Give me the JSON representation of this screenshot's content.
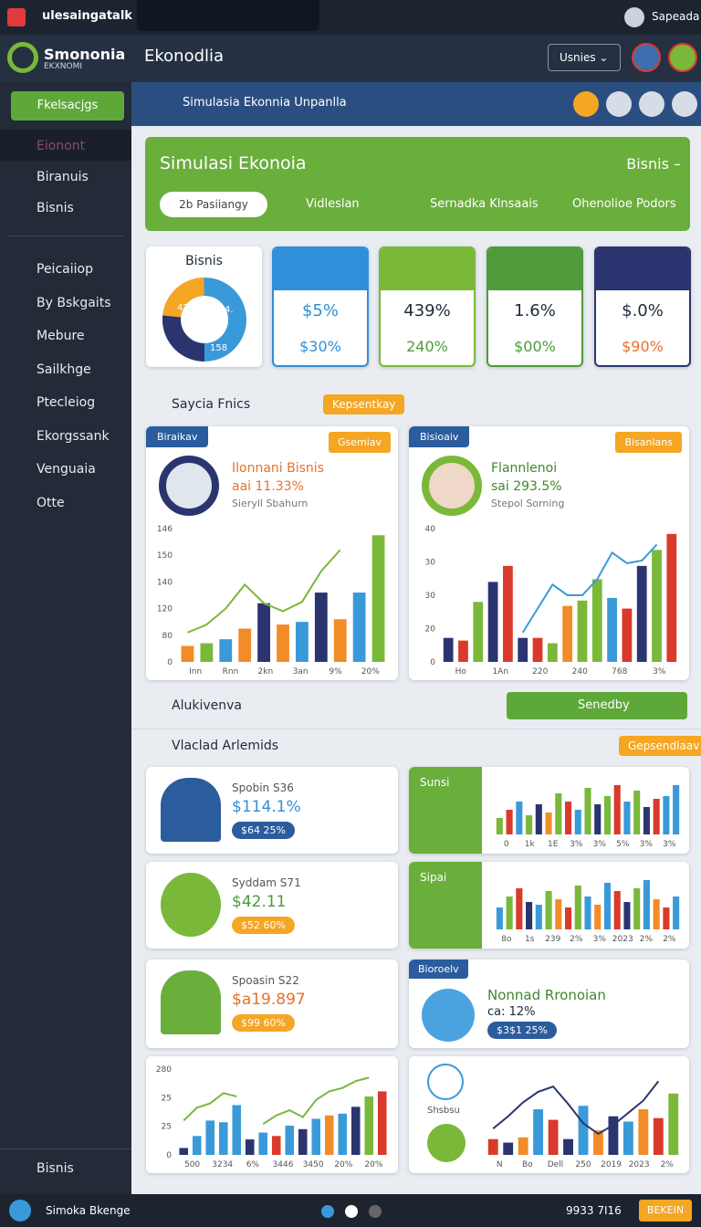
{
  "top_bar": {
    "app": "ulesaingatalk",
    "user": "Sapeada"
  },
  "header": {
    "brand": "Smononia",
    "brand_sub": "EKXNOMI",
    "title": "Ekonodlia",
    "dropdown": "Usnies"
  },
  "sidebar": {
    "button": "Fkelsacjgs",
    "items_top": [
      "Eionont",
      "Biranuis",
      "Bisnis"
    ],
    "items": [
      "Peicaiiop",
      "By Bskgaits",
      "Mebure",
      "Sailkhge",
      "Ptecleiog",
      "Ekorgssank",
      "Venguaia",
      "Otte"
    ],
    "footer": "Bisnis"
  },
  "breadcrumb": "Simulasia Ekonnia Unpanlla",
  "banner": {
    "title": "Simulasi Ekonoia",
    "right": "Bisnis –",
    "pill": "2b Pasiiangy",
    "items": [
      "Vidleslan",
      "Sernadka Klnsaais",
      "Ohenolioe Podors"
    ]
  },
  "kpis": {
    "donut_card": {
      "title": "Bisnis",
      "labels": [
        "47",
        "4.",
        "158"
      ]
    },
    "cards": [
      {
        "top": "$5%",
        "bottom": "$30%",
        "color": "#2f8fd8"
      },
      {
        "top": "439%",
        "bottom": "240%",
        "color": "#7ab83a"
      },
      {
        "top": "1.6%",
        "bottom": "$00%",
        "color": "#4f9a3a"
      },
      {
        "top": "$.0%",
        "bottom": "$90%",
        "color": "#2a3570"
      }
    ]
  },
  "section1": {
    "title": "Saycia Fnics",
    "button": "Kepsentkay"
  },
  "panels": [
    {
      "tag": "Biraikav",
      "badge": "Gsemiav",
      "title": "Ilonnani Bisnis",
      "value": "aai 11.33%",
      "sub": "Sieryll Sbahurn",
      "chart": {
        "y_labels": [
          "0",
          "80",
          "120",
          "140",
          "150",
          "146"
        ],
        "x_labels": [
          "Inn",
          "Rnn",
          "2kn",
          "3an",
          "9%",
          "20%"
        ],
        "ylim": [
          0,
          100
        ],
        "bars": [
          12,
          14,
          17,
          25,
          44,
          28,
          30,
          52,
          32,
          52,
          95
        ],
        "bar_colors": [
          "#f28c28",
          "#7ab83a",
          "#3a9ad9",
          "#f28c28",
          "#2a3570",
          "#f28c28",
          "#3a9ad9",
          "#2a3570",
          "#f28c28",
          "#3a9ad9",
          "#7ab83a"
        ],
        "line": [
          22,
          28,
          40,
          58,
          44,
          38,
          45,
          68,
          84,
          null,
          null
        ],
        "line_color": "#7ab83a"
      }
    },
    {
      "tag": "Bisioaiv",
      "badge": "Bisanlans",
      "title": "Flannlenoi",
      "value": "sai 293.5%",
      "sub": "Stepol Sorning",
      "chart": {
        "y_labels": [
          "0",
          "20",
          "30",
          "30",
          "40"
        ],
        "x_labels": [
          "Ho",
          "1An",
          "220",
          "240",
          "768",
          "3%"
        ],
        "ylim": [
          0,
          100
        ],
        "bars": [
          18,
          16,
          45,
          60,
          72,
          18,
          18,
          14,
          42,
          46,
          62,
          48,
          40,
          72,
          84,
          96
        ],
        "bar_colors": [
          "#2a3570",
          "#d93a2b",
          "#7ab83a",
          "#2a3570",
          "#d93a2b",
          "#2a3570",
          "#d93a2b",
          "#7ab83a",
          "#f28c28",
          "#7ab83a",
          "#7ab83a",
          "#3a9ad9",
          "#d93a2b",
          "#2a3570",
          "#7ab83a",
          "#d93a2b"
        ],
        "line": [
          null,
          null,
          null,
          null,
          null,
          22,
          40,
          58,
          50,
          50,
          62,
          82,
          74,
          76,
          88,
          null
        ],
        "line_color": "#3a9ad9"
      }
    }
  ],
  "section2": {
    "title": "Alukivenva",
    "dropdown": "Senedby"
  },
  "section3": {
    "title": "Vlaclad Arlemids",
    "button": "Gepsendlaav"
  },
  "people": [
    {
      "name": "Spobin S36",
      "value": "$114.1%",
      "pill": "$64 25%"
    },
    {
      "name": "Syddam S71",
      "value": "$42.11",
      "pill": "$52 60%"
    },
    {
      "name": "Spoasin S22",
      "value": "$a19.897",
      "pill": "$99 60%"
    }
  ],
  "mini": [
    {
      "label": "Sunsi",
      "chart": {
        "x_labels": [
          "0",
          "1k",
          "1E",
          "3%",
          "3%",
          "5%",
          "3%",
          "3%"
        ],
        "ylim": [
          0,
          100
        ],
        "bars": [
          30,
          45,
          60,
          35,
          55,
          40,
          75,
          60,
          45,
          85,
          55,
          70,
          90,
          60,
          80,
          50,
          65,
          70,
          90
        ],
        "bar_colors": [
          "#7ab83a",
          "#d93a2b",
          "#3a9ad9",
          "#7ab83a",
          "#2a3570",
          "#f28c28",
          "#7ab83a",
          "#d93a2b",
          "#3a9ad9",
          "#7ab83a",
          "#2a3570",
          "#7ab83a",
          "#d93a2b",
          "#3a9ad9",
          "#7ab83a",
          "#2a3570",
          "#d93a2b",
          "#3a9ad9",
          "#3a9ad9"
        ]
      }
    },
    {
      "label": "Sipai",
      "chart": {
        "x_labels": [
          "8o",
          "1s",
          "239",
          "2%",
          "3%",
          "2023",
          "2%",
          "2%"
        ],
        "ylim": [
          0,
          100
        ],
        "bars": [
          40,
          60,
          75,
          50,
          45,
          70,
          55,
          40,
          80,
          60,
          45,
          85,
          70,
          50,
          75,
          90,
          55,
          40,
          60
        ],
        "bar_colors": [
          "#3a9ad9",
          "#7ab83a",
          "#d93a2b",
          "#2a3570",
          "#3a9ad9",
          "#7ab83a",
          "#f28c28",
          "#d93a2b",
          "#7ab83a",
          "#3a9ad9",
          "#f28c28",
          "#3a9ad9",
          "#d93a2b",
          "#2a3570",
          "#7ab83a",
          "#3a9ad9",
          "#f28c28",
          "#d93a2b",
          "#3a9ad9"
        ]
      }
    }
  ],
  "geo": {
    "tag": "Bioroelv",
    "title": "Nonnad Rronoian",
    "value": "ca: 12%",
    "pill": "$3$1 25%"
  },
  "bottom_charts": [
    {
      "y_labels": [
        "0",
        "25",
        "25",
        "280"
      ],
      "x_labels": [
        "500",
        "3234",
        "6%",
        "3446",
        "3450",
        "20%",
        "20%"
      ],
      "ylim": [
        0,
        100
      ],
      "bars": [
        8,
        22,
        40,
        38,
        58,
        18,
        26,
        22,
        34,
        30,
        42,
        46,
        48,
        56,
        68,
        74
      ],
      "bar_colors": [
        "#2a3570",
        "#3a9ad9",
        "#3a9ad9",
        "#3a9ad9",
        "#3a9ad9",
        "#2a3570",
        "#3a9ad9",
        "#d93a2b",
        "#3a9ad9",
        "#2a3570",
        "#3a9ad9",
        "#f28c28",
        "#3a9ad9",
        "#2a3570",
        "#7ab83a",
        "#d93a2b"
      ],
      "line": [
        40,
        55,
        60,
        72,
        68,
        null,
        36,
        46,
        52,
        44,
        64,
        74,
        78,
        86,
        90,
        null
      ],
      "line_color": "#7ab83a"
    },
    {
      "caption": "Shsbsu",
      "x_labels": [
        "N",
        "Bo",
        "Dell",
        "250",
        "2019",
        "2023",
        "2%"
      ],
      "ylim": [
        0,
        100
      ],
      "bars": [
        18,
        14,
        20,
        52,
        40,
        18,
        56,
        28,
        44,
        38,
        52,
        42,
        70
      ],
      "bar_colors": [
        "#d93a2b",
        "#2a3570",
        "#f28c28",
        "#3a9ad9",
        "#d93a2b",
        "#2a3570",
        "#3a9ad9",
        "#f28c28",
        "#2a3570",
        "#3a9ad9",
        "#f28c28",
        "#d93a2b",
        "#7ab83a"
      ],
      "line": [
        30,
        44,
        60,
        72,
        78,
        58,
        36,
        24,
        34,
        48,
        62,
        84,
        null
      ],
      "line_color": "#2a3570"
    }
  ],
  "footer": {
    "name": "Simoka Bkenge",
    "code": "9933 7I16",
    "button": "BEKEIN"
  }
}
